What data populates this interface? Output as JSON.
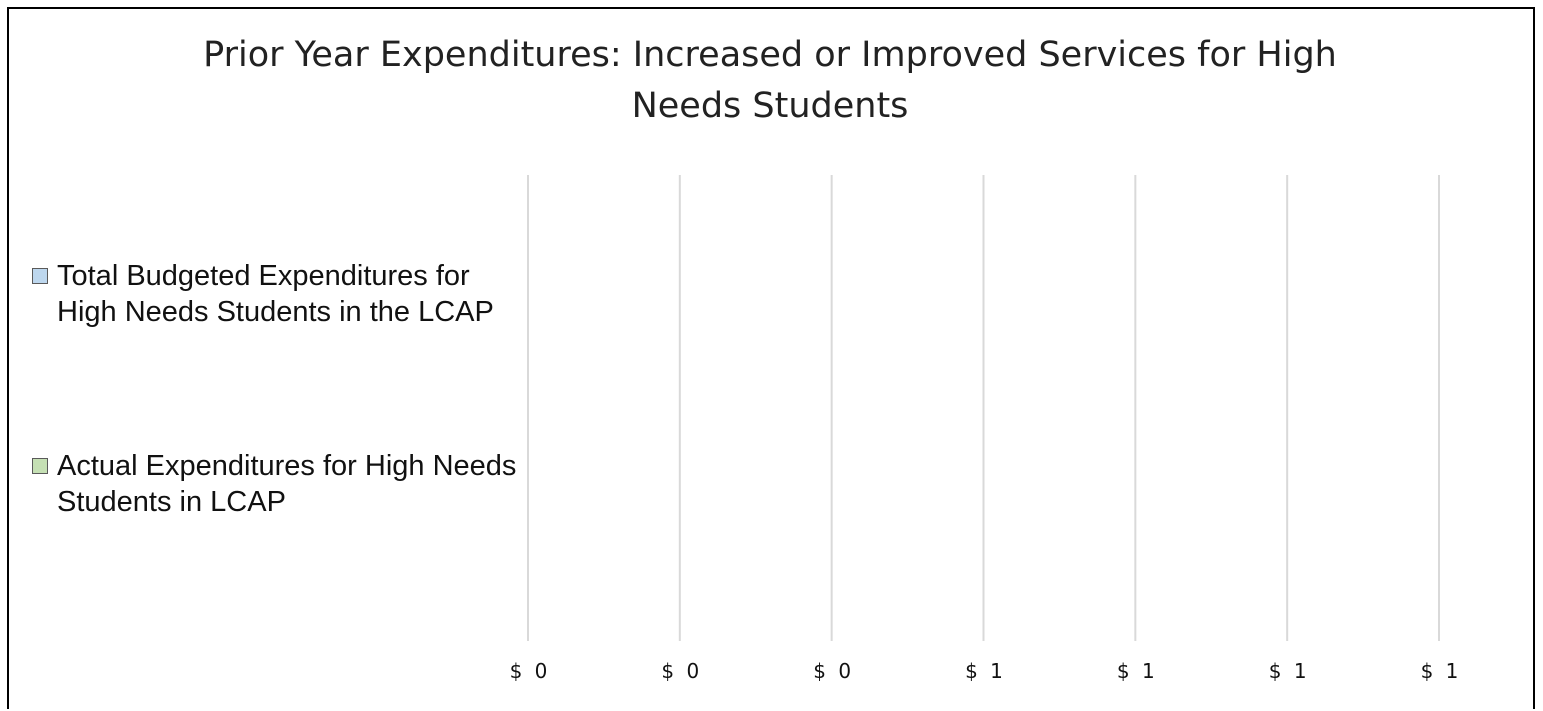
{
  "chart_data": {
    "type": "bar",
    "orientation": "horizontal",
    "title": "Prior Year Expenditures: Increased or Improved Services for High Needs Students",
    "series": [
      {
        "name": "Total Budgeted Expenditures for High Needs Students in the LCAP",
        "values": [
          0
        ],
        "color": "#bdd7ee"
      },
      {
        "name": "Actual Expenditures for High Needs Students in LCAP",
        "values": [
          0
        ],
        "color": "#c5e0b4"
      }
    ],
    "x_ticks": [
      "$ 0",
      "$ 0",
      "$ 0",
      "$ 1",
      "$ 1",
      "$ 1",
      "$ 1"
    ],
    "xlim": [
      0,
      1
    ],
    "grid": true,
    "legend_position": "left",
    "gridline_color": "#d9d9d9"
  }
}
